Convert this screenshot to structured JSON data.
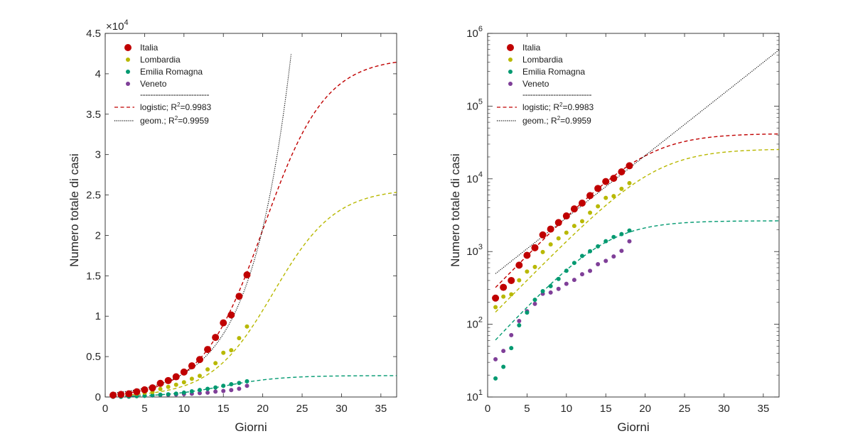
{
  "chart_data": [
    {
      "type": "scatter",
      "scale": "linear",
      "exponent_label": "×10",
      "exponent_sup": "4",
      "xlabel": "Giorni",
      "ylabel": "Numero totale di casi",
      "xlim": [
        0,
        37
      ],
      "ylim": [
        0,
        45000
      ],
      "xticks": [
        0,
        5,
        10,
        15,
        20,
        25,
        30,
        35
      ],
      "xtick_labels": [
        "0",
        "5",
        "10",
        "15",
        "20",
        "25",
        "30",
        "35"
      ],
      "yticks": [
        0,
        5000,
        10000,
        15000,
        20000,
        25000,
        30000,
        35000,
        40000,
        45000
      ],
      "ytick_labels": [
        "0",
        "0.5",
        "1",
        "1.5",
        "2",
        "2.5",
        "3",
        "3.5",
        "4",
        "4.5"
      ],
      "legend_position": "top-left",
      "legend_separator": "---------------------------",
      "legend_fits": [
        {
          "kind": "logistic",
          "text": "logistic;  R",
          "sup": "2",
          "value": "=0.9983"
        },
        {
          "kind": "geom",
          "text": "geom.;   R",
          "sup": "2",
          "value": "=0.9959"
        }
      ],
      "x": [
        1,
        2,
        3,
        4,
        5,
        6,
        7,
        8,
        9,
        10,
        11,
        12,
        13,
        14,
        15,
        16,
        17,
        18
      ],
      "series": [
        {
          "name": "Italia",
          "color": "#c00000",
          "marker": "large",
          "values": [
            229,
            322,
            400,
            650,
            888,
            1128,
            1694,
            2036,
            2502,
            3089,
            3858,
            4636,
            5883,
            7375,
            9172,
            10149,
            12462,
            15113
          ]
        },
        {
          "name": "Lombardia",
          "color": "#b8b800",
          "marker": "small",
          "values": [
            172,
            240,
            258,
            403,
            531,
            615,
            984,
            1254,
            1520,
            1820,
            2251,
            2612,
            3420,
            4189,
            5469,
            5791,
            7280,
            8725
          ]
        },
        {
          "name": "Emilia Romagna",
          "color": "#009970",
          "marker": "small",
          "values": [
            18,
            26,
            47,
            97,
            145,
            217,
            285,
            335,
            420,
            544,
            698,
            870,
            1010,
            1180,
            1386,
            1586,
            1739,
            1947
          ]
        },
        {
          "name": "Veneto",
          "color": "#7f3f98",
          "marker": "small",
          "values": [
            33,
            43,
            71,
            111,
            151,
            191,
            263,
            273,
            307,
            360,
            407,
            488,
            543,
            670,
            744,
            856,
            1023,
            1384
          ]
        }
      ],
      "fits": [
        {
          "kind": "logistic",
          "color": "#c00000",
          "style": "dashed",
          "K": 42000,
          "r": 0.2546,
          "t0": 20.12,
          "x_range": [
            1,
            37
          ]
        },
        {
          "kind": "logistic",
          "color": "#b8b800",
          "style": "dashed",
          "K": 25800,
          "r": 0.2538,
          "t0": 21.34,
          "x_range": [
            1,
            37
          ]
        },
        {
          "kind": "logistic",
          "color": "#009970",
          "style": "dashed",
          "K": 2650,
          "r": 0.27,
          "t0": 14.9,
          "x_range": [
            1,
            37
          ]
        },
        {
          "kind": "geom",
          "color": "#000000",
          "style": "dotted",
          "A": 408,
          "r": 0.1968,
          "x_range": [
            1,
            23.6
          ]
        }
      ]
    },
    {
      "type": "scatter",
      "scale": "log",
      "xlabel": "Giorni",
      "ylabel": "Numero totale di casi",
      "xlim": [
        0,
        37
      ],
      "ylim": [
        10,
        1000000
      ],
      "xticks": [
        0,
        5,
        10,
        15,
        20,
        25,
        30,
        35
      ],
      "xtick_labels": [
        "0",
        "5",
        "10",
        "15",
        "20",
        "25",
        "30",
        "35"
      ],
      "yticks": [
        10,
        100,
        1000,
        10000,
        100000,
        1000000
      ],
      "ytick_labels": [
        {
          "base": "10",
          "exp": "1"
        },
        {
          "base": "10",
          "exp": "2"
        },
        {
          "base": "10",
          "exp": "3"
        },
        {
          "base": "10",
          "exp": "4"
        },
        {
          "base": "10",
          "exp": "5"
        },
        {
          "base": "10",
          "exp": "6"
        }
      ],
      "legend_position": "top-left",
      "legend_separator": "---------------------------",
      "legend_fits": [
        {
          "kind": "logistic",
          "text": "logistic;  R",
          "sup": "2",
          "value": "=0.9983"
        },
        {
          "kind": "geom",
          "text": "geom.;   R",
          "sup": "2",
          "value": "=0.9959"
        }
      ],
      "x": [
        1,
        2,
        3,
        4,
        5,
        6,
        7,
        8,
        9,
        10,
        11,
        12,
        13,
        14,
        15,
        16,
        17,
        18
      ],
      "series": [
        {
          "name": "Italia",
          "color": "#c00000",
          "marker": "large",
          "values": [
            229,
            322,
            400,
            650,
            888,
            1128,
            1694,
            2036,
            2502,
            3089,
            3858,
            4636,
            5883,
            7375,
            9172,
            10149,
            12462,
            15113
          ]
        },
        {
          "name": "Lombardia",
          "color": "#b8b800",
          "marker": "small",
          "values": [
            172,
            240,
            258,
            403,
            531,
            615,
            984,
            1254,
            1520,
            1820,
            2251,
            2612,
            3420,
            4189,
            5469,
            5791,
            7280,
            8725
          ]
        },
        {
          "name": "Emilia Romagna",
          "color": "#009970",
          "marker": "small",
          "values": [
            18,
            26,
            47,
            97,
            145,
            217,
            285,
            335,
            420,
            544,
            698,
            870,
            1010,
            1180,
            1386,
            1586,
            1739,
            1947
          ]
        },
        {
          "name": "Veneto",
          "color": "#7f3f98",
          "marker": "small",
          "values": [
            33,
            43,
            71,
            111,
            151,
            191,
            263,
            273,
            307,
            360,
            407,
            488,
            543,
            670,
            744,
            856,
            1023,
            1384
          ]
        }
      ],
      "fits": [
        {
          "kind": "logistic",
          "color": "#c00000",
          "style": "dashed",
          "K": 42000,
          "r": 0.2546,
          "t0": 20.12,
          "x_range": [
            1,
            37
          ]
        },
        {
          "kind": "logistic",
          "color": "#b8b800",
          "style": "dashed",
          "K": 25800,
          "r": 0.2538,
          "t0": 21.34,
          "x_range": [
            1,
            37
          ]
        },
        {
          "kind": "logistic",
          "color": "#009970",
          "style": "dashed",
          "K": 2650,
          "r": 0.27,
          "t0": 14.9,
          "x_range": [
            1,
            37
          ]
        },
        {
          "kind": "geom",
          "color": "#000000",
          "style": "dotted",
          "A": 408,
          "r": 0.1968,
          "x_range": [
            1,
            37
          ]
        }
      ]
    }
  ]
}
